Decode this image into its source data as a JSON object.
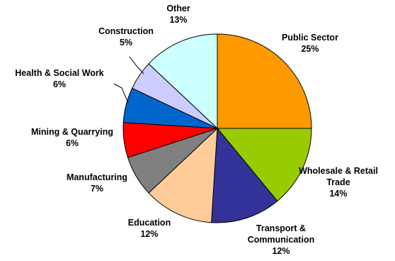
{
  "chart_data": {
    "type": "pie",
    "title": "",
    "slices": [
      {
        "label": "Public Sector",
        "value": 25,
        "value_label": "25%",
        "color": "#FF9900"
      },
      {
        "label": "Wholesale & Retail Trade",
        "value": 14,
        "value_label": "14%",
        "color": "#99CC00"
      },
      {
        "label": "Transport & Communication",
        "value": 12,
        "value_label": "12%",
        "color": "#333399"
      },
      {
        "label": "Education",
        "value": 12,
        "value_label": "12%",
        "color": "#FFCC99"
      },
      {
        "label": "Manufacturing",
        "value": 7,
        "value_label": "7%",
        "color": "#808080"
      },
      {
        "label": "Mining & Quarrying",
        "value": 6,
        "value_label": "6%",
        "color": "#FF0000"
      },
      {
        "label": "Health & Social Work",
        "value": 6,
        "value_label": "6%",
        "color": "#0066CC"
      },
      {
        "label": "Construction",
        "value": 5,
        "value_label": "5%",
        "color": "#CCCCFF"
      },
      {
        "label": "Other",
        "value": 13,
        "value_label": "13%",
        "color": "#CCFFFF"
      }
    ],
    "start_position": "12 o'clock",
    "direction": "clockwise",
    "legend": "none",
    "labels": "outside, category name and percentage"
  }
}
